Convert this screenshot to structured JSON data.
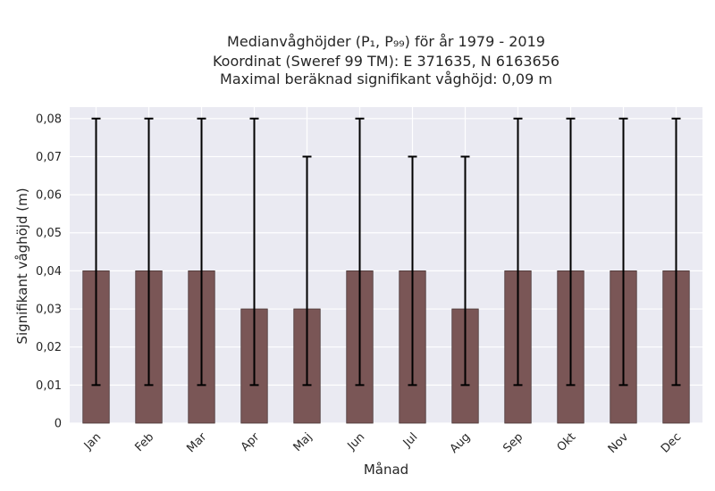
{
  "chart_data": {
    "type": "bar",
    "title_lines": [
      "Medianvåghöjder (P₁, P₉₉) för år 1979 - 2019",
      "Koordinat (Sweref 99 TM): E 371635, N 6163656",
      "Maximal beräknad signifikant våghöjd: 0,09 m"
    ],
    "xlabel": "Månad",
    "ylabel": "Signifikant våghöjd (m)",
    "categories": [
      "Jan",
      "Feb",
      "Mar",
      "Apr",
      "Maj",
      "Jun",
      "Jul",
      "Aug",
      "Sep",
      "Okt",
      "Nov",
      "Dec"
    ],
    "values": [
      0.04,
      0.04,
      0.04,
      0.03,
      0.03,
      0.04,
      0.04,
      0.03,
      0.04,
      0.04,
      0.04,
      0.04
    ],
    "p1": [
      0.01,
      0.01,
      0.01,
      0.01,
      0.01,
      0.01,
      0.01,
      0.01,
      0.01,
      0.01,
      0.01,
      0.01
    ],
    "p99": [
      0.08,
      0.08,
      0.08,
      0.08,
      0.07,
      0.08,
      0.07,
      0.07,
      0.08,
      0.08,
      0.08,
      0.08
    ],
    "ylim": [
      0,
      0.083
    ],
    "yticks": [
      0,
      0.01,
      0.02,
      0.03,
      0.04,
      0.05,
      0.06,
      0.07,
      0.08
    ],
    "ytick_labels": [
      "0",
      "0,01",
      "0,02",
      "0,03",
      "0,04",
      "0,05",
      "0,06",
      "0,07",
      "0,08"
    ],
    "grid": true,
    "colors": {
      "bar_fill": "#7a5656",
      "bar_edge": "#4a3636",
      "error_bar": "#000000",
      "plot_background": "#eaeaf2",
      "grid": "#ffffff",
      "text": "#262626"
    }
  }
}
